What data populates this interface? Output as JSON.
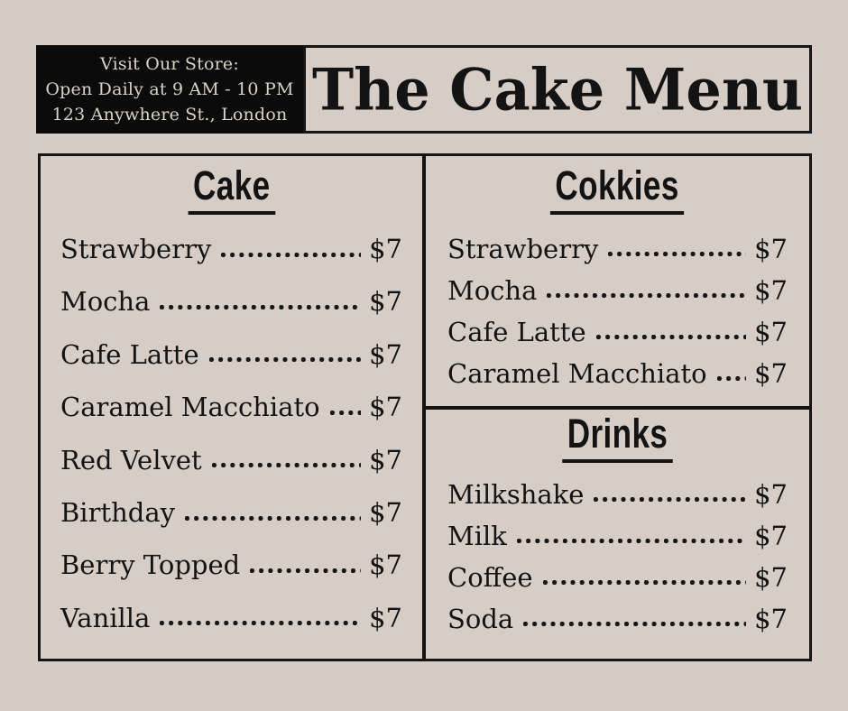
{
  "poster": {
    "background_color": "#d5cdc5",
    "ink_color": "#131313",
    "cream_text_color": "#d9d2c6"
  },
  "header": {
    "store_info_lines": [
      "Visit Our Store:",
      "Open Daily at 9 AM - 10 PM",
      "123 Anywhere St., London"
    ],
    "title": "The Cake Menu"
  },
  "menu": {
    "sections": [
      {
        "title": "Cake",
        "items": [
          {
            "name": "Strawberry",
            "price": "$7"
          },
          {
            "name": "Mocha",
            "price": "$7"
          },
          {
            "name": "Cafe Latte",
            "price": "$7"
          },
          {
            "name": "Caramel Macchiato",
            "price": "$7"
          },
          {
            "name": "Red Velvet",
            "price": "$7"
          },
          {
            "name": "Birthday",
            "price": "$7"
          },
          {
            "name": "Berry Topped",
            "price": "$7"
          },
          {
            "name": "Vanilla",
            "price": "$7"
          }
        ]
      },
      {
        "title": "Cokkies",
        "items": [
          {
            "name": "Strawberry",
            "price": "$7"
          },
          {
            "name": "Mocha",
            "price": "$7"
          },
          {
            "name": "Cafe Latte",
            "price": "$7"
          },
          {
            "name": "Caramel Macchiato",
            "price": "$7"
          }
        ]
      },
      {
        "title": "Drinks",
        "items": [
          {
            "name": "Milkshake",
            "price": "$7"
          },
          {
            "name": "Milk",
            "price": "$7"
          },
          {
            "name": "Coffee",
            "price": "$7"
          },
          {
            "name": "Soda",
            "price": "$7"
          }
        ]
      }
    ]
  }
}
